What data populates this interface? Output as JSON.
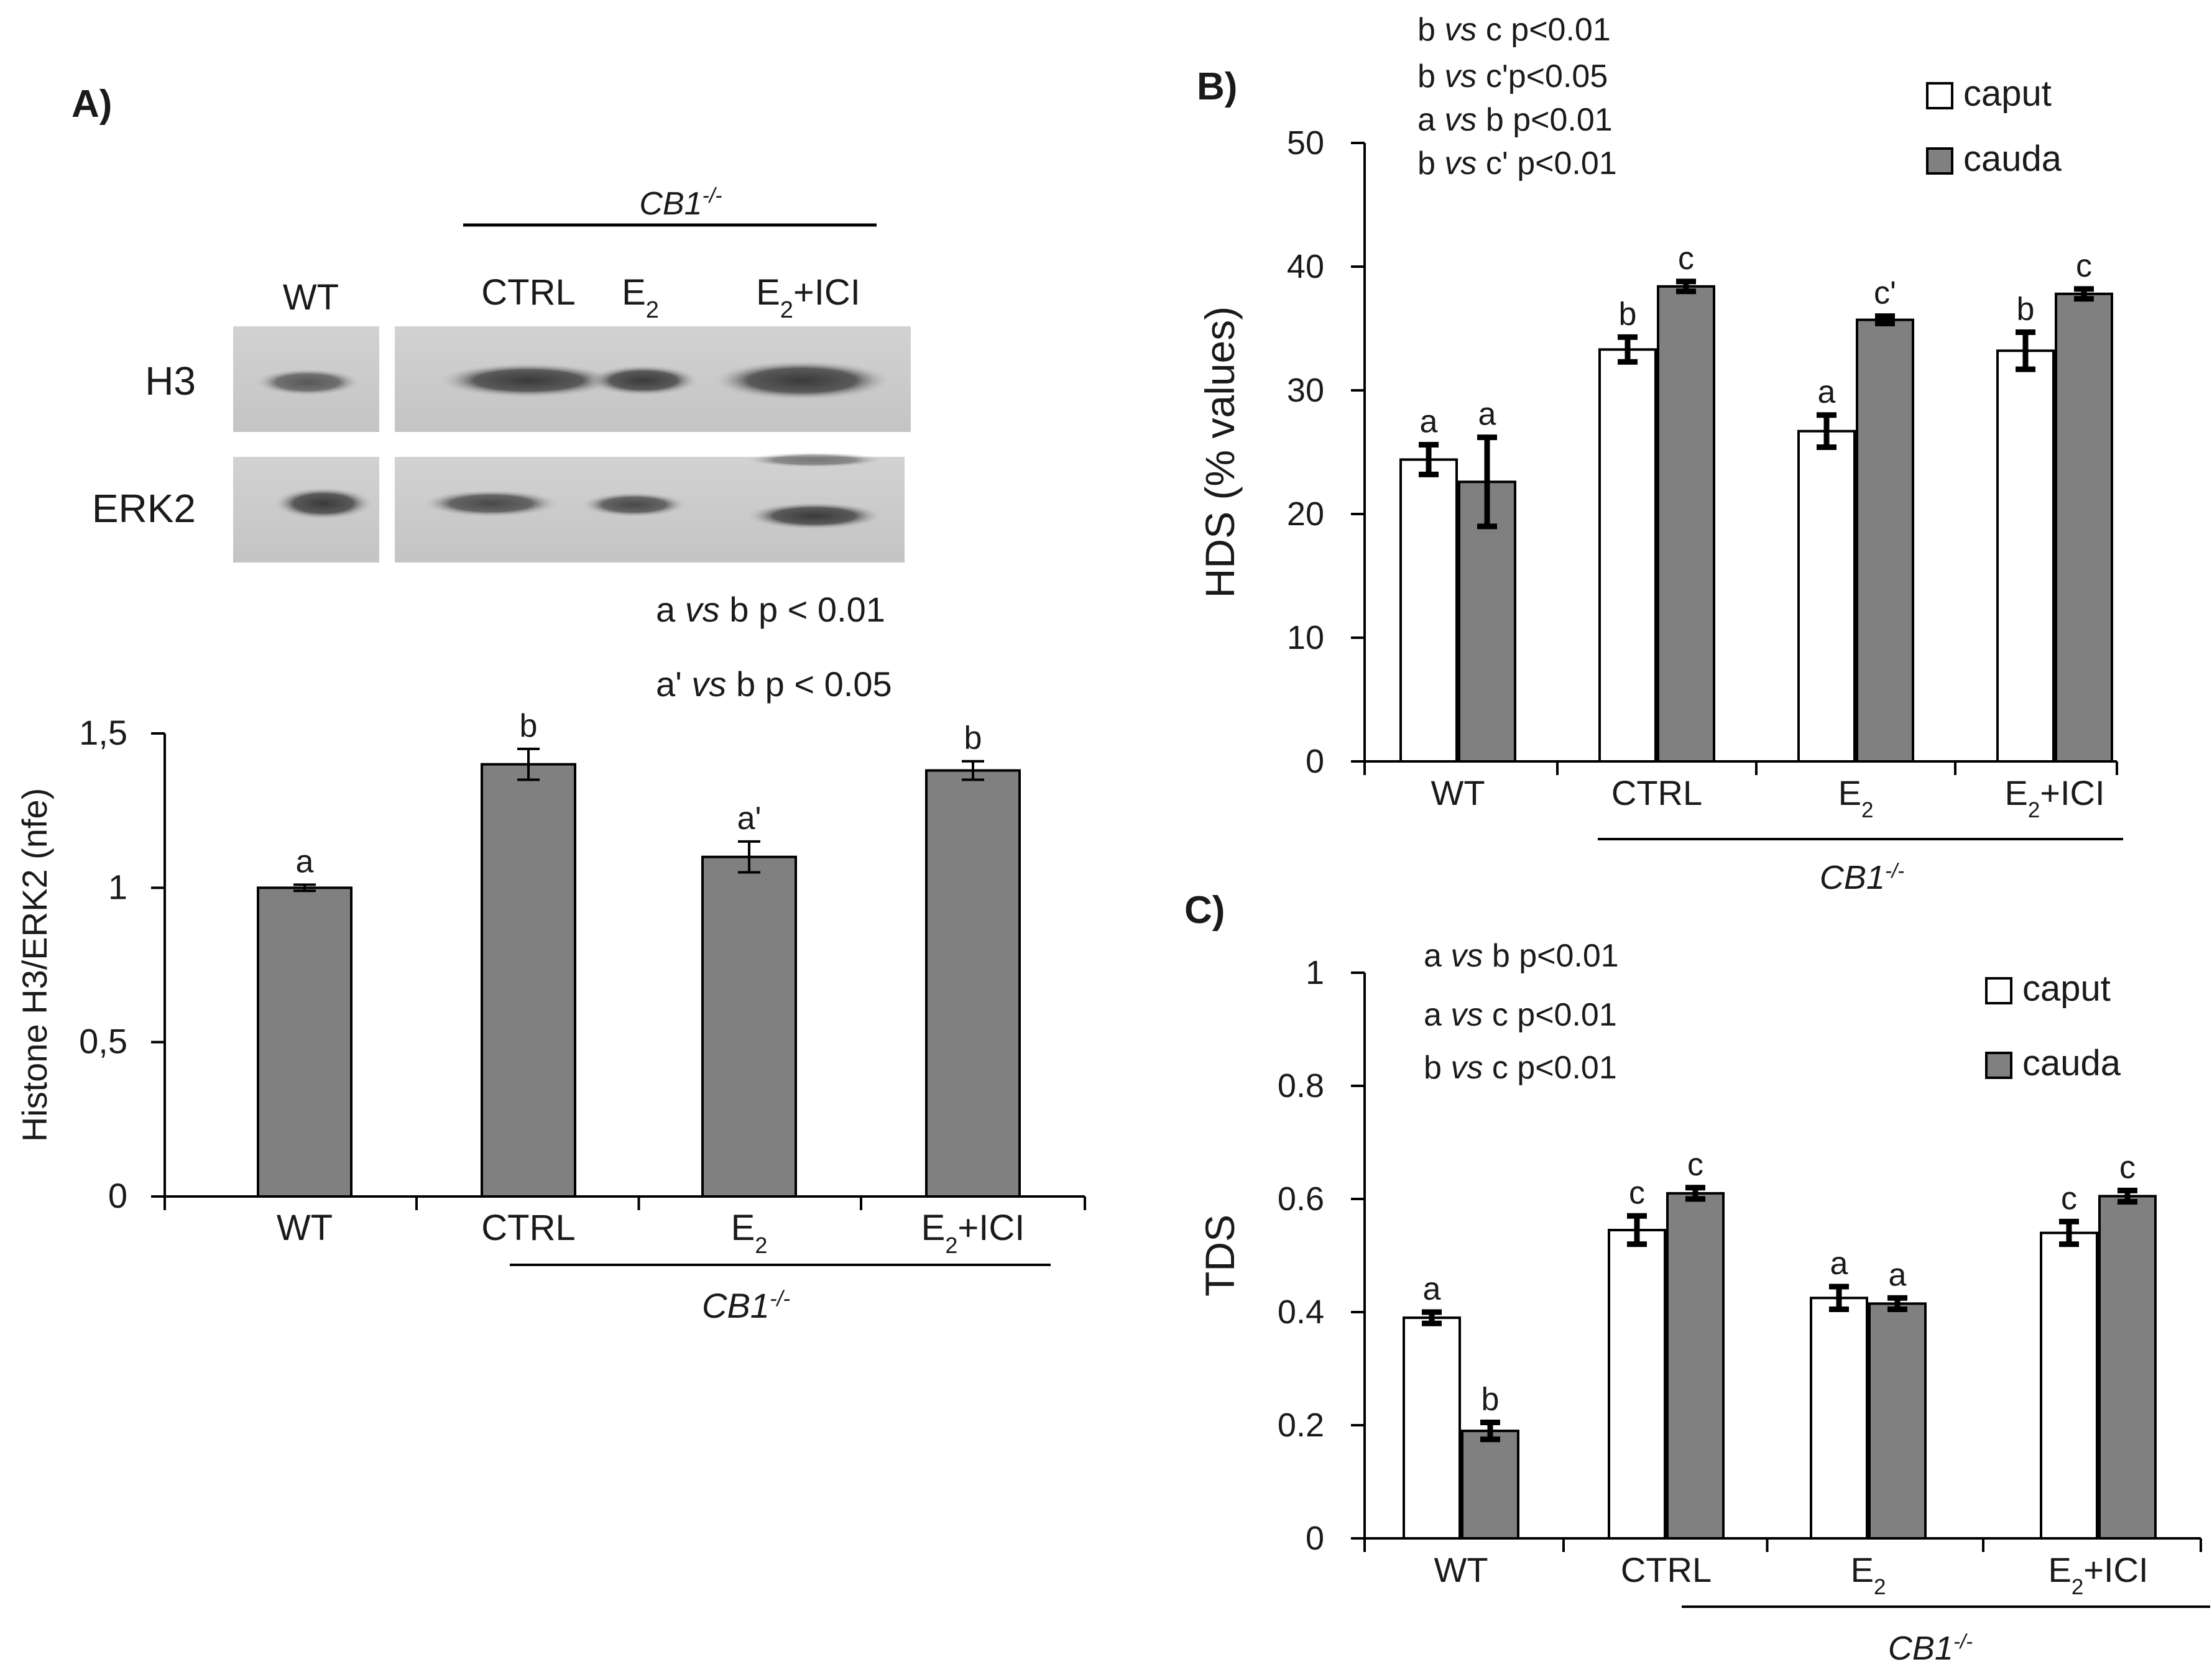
{
  "panel_a": {
    "label": "A)",
    "blot": {
      "group_label": "CB1",
      "group_sup": "-/-",
      "lanes": [
        "WT",
        "CTRL",
        "E",
        "E"
      ],
      "lane_subs": [
        "",
        "",
        "2",
        "2"
      ],
      "lane_suffix": [
        "",
        "",
        "",
        "+ICI"
      ],
      "rows": [
        "H3",
        "ERK2"
      ]
    }
  },
  "panel_b": {
    "label": "B)"
  },
  "panel_c": {
    "label": "C)"
  },
  "chart_data": [
    {
      "id": "a",
      "type": "bar",
      "title": "",
      "ylabel": "Histone H3/ERK2 (nfe)",
      "ylim": [
        0,
        1.5
      ],
      "yticks": [
        "0",
        "0,5",
        "1",
        "1,5"
      ],
      "categories": [
        "WT",
        "CTRL",
        "E2",
        "E2+ICI"
      ],
      "category_text": [
        "WT",
        "CTRL",
        "E",
        "E"
      ],
      "category_subs": [
        "",
        "",
        "2",
        "2"
      ],
      "category_suffix": [
        "",
        "",
        "",
        "+ICI"
      ],
      "group_label": "CB1",
      "group_sup": "-/-",
      "series": [
        {
          "name": "Histone H3/ERK2",
          "color": "#808080",
          "values": [
            1.0,
            1.4,
            1.1,
            1.38
          ],
          "errors": [
            0.01,
            0.05,
            0.05,
            0.03
          ],
          "letters": [
            "a",
            "b",
            "a'",
            "b"
          ]
        }
      ],
      "annotations": [
        {
          "pre": "a ",
          "vs": "vs",
          "post": " b p < 0.01"
        },
        {
          "pre": "a' ",
          "vs": "vs",
          "post": " b p < 0.05"
        }
      ]
    },
    {
      "id": "b",
      "type": "bar",
      "title": "",
      "ylabel": "HDS (% values)",
      "ylim": [
        0,
        50
      ],
      "yticks": [
        "0",
        "10",
        "20",
        "30",
        "40",
        "50"
      ],
      "categories": [
        "WT",
        "CTRL",
        "E2",
        "E2+ICI"
      ],
      "category_text": [
        "WT",
        "CTRL",
        "E",
        "E"
      ],
      "category_subs": [
        "",
        "",
        "2",
        "2"
      ],
      "category_suffix": [
        "",
        "",
        "",
        "+ICI"
      ],
      "group_label": "CB1",
      "group_sup": "-/-",
      "legend": "top-right",
      "series": [
        {
          "name": "caput",
          "color": "#ffffff",
          "values": [
            24.4,
            33.3,
            26.7,
            33.2
          ],
          "errors": [
            1.2,
            1.0,
            1.3,
            1.5
          ],
          "letters": [
            "a",
            "b",
            "a",
            "b"
          ]
        },
        {
          "name": "cauda",
          "color": "#808080",
          "values": [
            22.6,
            38.4,
            35.7,
            37.8
          ],
          "errors": [
            3.6,
            0.4,
            0.3,
            0.4
          ],
          "letters": [
            "a",
            "c",
            "c'",
            "c"
          ]
        }
      ],
      "annotations": [
        {
          "pre": "b ",
          "vs": "vs",
          "post": " c p<0.01"
        },
        {
          "pre": "b ",
          "vs": "vs",
          "post": " c'p<0.05"
        },
        {
          "pre": "a ",
          "vs": "vs",
          "post": " b p<0.01"
        },
        {
          "pre": "b ",
          "vs": "vs",
          "post": " c' p<0.01"
        }
      ]
    },
    {
      "id": "c",
      "type": "bar",
      "title": "",
      "ylabel": "TDS",
      "ylim": [
        0,
        1
      ],
      "yticks": [
        "0",
        "0.2",
        "0.4",
        "0.6",
        "0.8",
        "1"
      ],
      "categories": [
        "WT",
        "CTRL",
        "E2",
        "E2+ICI"
      ],
      "category_text": [
        "WT",
        "CTRL",
        "E",
        "E"
      ],
      "category_subs": [
        "",
        "",
        "2",
        "2"
      ],
      "category_suffix": [
        "",
        "",
        "",
        "+ICI"
      ],
      "group_label": "CB1",
      "group_sup": "-/-",
      "legend": "top-right",
      "series": [
        {
          "name": "caput",
          "color": "#ffffff",
          "values": [
            0.39,
            0.545,
            0.425,
            0.54
          ],
          "errors": [
            0.01,
            0.025,
            0.02,
            0.02
          ],
          "letters": [
            "a",
            "c",
            "a",
            "c"
          ]
        },
        {
          "name": "cauda",
          "color": "#808080",
          "values": [
            0.19,
            0.61,
            0.415,
            0.605
          ],
          "errors": [
            0.015,
            0.01,
            0.01,
            0.01
          ],
          "letters": [
            "b",
            "c",
            "a",
            "c"
          ]
        }
      ],
      "annotations": [
        {
          "pre": "a ",
          "vs": "vs",
          "post": " b p<0.01"
        },
        {
          "pre": "a ",
          "vs": "vs",
          "post": " c p<0.01"
        },
        {
          "pre": "b ",
          "vs": "vs",
          "post": " c p<0.01"
        }
      ]
    }
  ]
}
